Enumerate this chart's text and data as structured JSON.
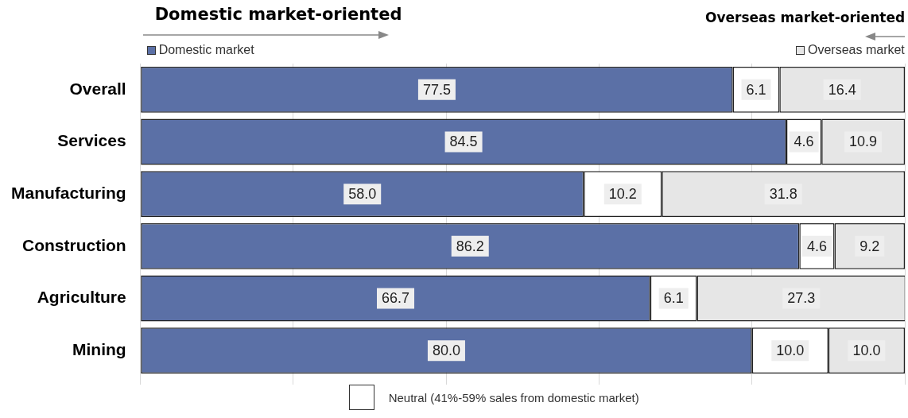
{
  "chart_data": {
    "type": "bar",
    "orientation": "horizontal",
    "stacked": true,
    "categories": [
      "Overall",
      "Services",
      "Manufacturing",
      "Construction",
      "Agriculture",
      "Mining"
    ],
    "series": [
      {
        "name": "Domestic market",
        "color": "#5b70a6",
        "values": [
          77.5,
          84.5,
          58.0,
          86.2,
          66.7,
          80.0
        ],
        "value_labels": [
          "77.5",
          "84.5",
          "58.0",
          "86.2",
          "66.7",
          "80.0"
        ]
      },
      {
        "name": "Neutral (41%-59% sales from domestic market)",
        "color": "#ffffff",
        "values": [
          6.1,
          4.6,
          10.2,
          4.6,
          6.1,
          10.0
        ],
        "value_labels": [
          "6.1",
          "4.6",
          "10.2",
          "4.6",
          "6.1",
          "10.0"
        ]
      },
      {
        "name": "Overseas market",
        "color": "#e6e6e6",
        "values": [
          16.4,
          10.9,
          31.8,
          9.2,
          27.3,
          10.0
        ],
        "value_labels": [
          "16.4",
          "10.9",
          "31.8",
          "9.2",
          "27.3",
          "10.0"
        ]
      }
    ],
    "xlim": [
      0,
      100
    ],
    "xticks": [
      {
        "value": 0,
        "label": null
      },
      {
        "value": 20,
        "label": null
      },
      {
        "value": 40,
        "label": null
      },
      {
        "value": 60,
        "label": null
      },
      {
        "value": 80,
        "label": null
      },
      {
        "value": 100,
        "label": null
      }
    ],
    "grid": "x",
    "tick_labels": "y",
    "legend": "bottom",
    "annotations": [
      "Domestic market-oriented",
      "Overseas market-oriented"
    ]
  }
}
